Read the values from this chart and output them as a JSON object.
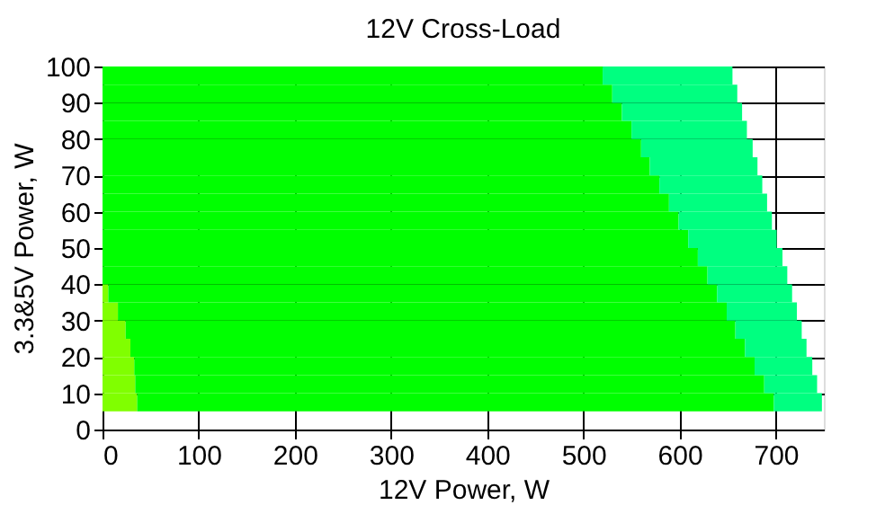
{
  "chart_data": {
    "type": "bar",
    "orientation": "horizontal",
    "stacked": true,
    "title": "12V Cross-Load",
    "xlabel": "12V Power, W",
    "ylabel": "3.3&5V Power, W",
    "x": [
      7.5,
      12.5,
      17.5,
      22.5,
      27.5,
      32.5,
      37.5,
      42.5,
      47.5,
      52.5,
      57.5,
      62.5,
      67.5,
      72.5,
      77.5,
      82.5,
      87.5,
      92.5,
      97.5
    ],
    "series": [
      {
        "color": "#80ff00",
        "values": [
          36,
          34,
          33,
          29,
          24,
          16,
          6,
          0,
          0,
          0,
          0,
          0,
          0,
          0,
          0,
          0,
          0,
          0,
          0
        ]
      },
      {
        "color": "#00ff00",
        "values": [
          662,
          654,
          645,
          639,
          634,
          633,
          633,
          629,
          619,
          609,
          599,
          589,
          579,
          569,
          560,
          550,
          540,
          530,
          520
        ]
      },
      {
        "color": "#00ff80",
        "values": [
          50,
          55,
          60,
          64,
          69,
          73,
          78,
          83,
          88,
          92,
          97,
          102,
          107,
          112,
          116,
          120,
          125,
          130,
          135
        ]
      }
    ],
    "xlim": [
      0,
      750
    ],
    "xticks": [
      0,
      100,
      200,
      300,
      400,
      500,
      600,
      700
    ],
    "ylim": [
      0,
      100
    ],
    "yticks": [
      0,
      10,
      20,
      30,
      40,
      50,
      60,
      70,
      80,
      90,
      100
    ],
    "grid": true
  }
}
